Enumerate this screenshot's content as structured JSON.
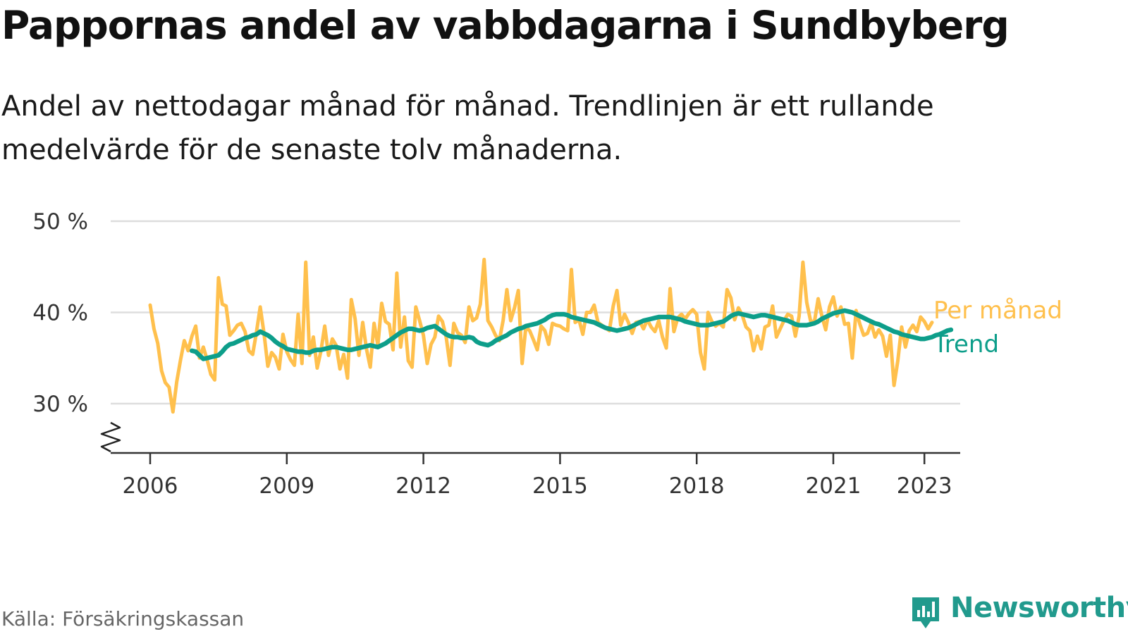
{
  "title": "Pappornas andel av vabbdagarna i Sundbyberg",
  "subtitle": "Andel av nettodagar månad för månad. Trendlinjen är ett rullande medelvärde för de senaste tolv månaderna.",
  "source": "Källa: Försäkringskassan",
  "brand": {
    "name": "Newsworthy",
    "icon": "newsworthy-logo-icon"
  },
  "colors": {
    "monthly": "#ffc04d",
    "trend": "#0d9e8a",
    "grid": "#dddddd",
    "axis": "#333333",
    "brand": "#219a8d"
  },
  "chart_data": {
    "type": "line",
    "title": "Pappornas andel av vabbdagarna i Sundbyberg",
    "subtitle": "Andel av nettodagar månad för månad. Trendlinjen är ett rullande medelvärde för de senaste tolv månaderna.",
    "xlabel": "",
    "ylabel": "",
    "ylim": [
      25,
      50
    ],
    "xlim": [
      2005.15,
      2024.1
    ],
    "y_break": true,
    "grid": true,
    "y_ticks": [
      {
        "value": 30,
        "label": "30 %"
      },
      {
        "value": 40,
        "label": "40 %"
      },
      {
        "value": 50,
        "label": "50 %"
      }
    ],
    "x_ticks": [
      {
        "value": 2006,
        "label": "2006"
      },
      {
        "value": 2009,
        "label": "2009"
      },
      {
        "value": 2012,
        "label": "2012"
      },
      {
        "value": 2015,
        "label": "2015"
      },
      {
        "value": 2018,
        "label": "2018"
      },
      {
        "value": 2021,
        "label": "2021"
      },
      {
        "value": 2023,
        "label": "2023"
      }
    ],
    "legend_placement": "right-end-labels",
    "series": [
      {
        "name": "Per månad",
        "color": "#ffc04d",
        "start": "2006-01",
        "values": [
          40.8,
          38.2,
          36.6,
          33.6,
          32.3,
          31.8,
          29.1,
          32.4,
          34.8,
          36.9,
          35.8,
          37.4,
          38.5,
          35.0,
          36.2,
          34.8,
          33.2,
          32.6,
          43.8,
          40.9,
          40.7,
          37.5,
          38.0,
          38.6,
          38.8,
          37.9,
          35.8,
          35.4,
          37.8,
          40.6,
          37.7,
          34.1,
          35.6,
          35.1,
          33.8,
          37.6,
          35.7,
          34.8,
          34.2,
          39.8,
          34.4,
          45.5,
          35.3,
          37.3,
          33.9,
          35.8,
          38.5,
          35.3,
          37.1,
          36.4,
          33.8,
          35.4,
          32.8,
          41.4,
          39.3,
          35.3,
          38.9,
          36.0,
          34.0,
          38.8,
          36.4,
          41.0,
          39.0,
          38.7,
          35.9,
          44.3,
          36.2,
          39.5,
          34.7,
          34.0,
          40.6,
          39.1,
          37.5,
          34.4,
          36.5,
          37.3,
          39.6,
          39.0,
          37.3,
          34.2,
          38.8,
          37.8,
          37.5,
          36.7,
          40.6,
          39.1,
          39.4,
          40.9,
          45.8,
          39.1,
          38.4,
          37.5,
          36.9,
          39.1,
          42.5,
          39.1,
          40.5,
          42.4,
          34.4,
          38.4,
          38.0,
          37.0,
          35.9,
          38.5,
          38.0,
          36.5,
          38.8,
          38.6,
          38.5,
          38.2,
          38.0,
          44.7,
          38.9,
          39.2,
          37.6,
          40.0,
          40.0,
          40.8,
          38.9,
          38.6,
          38.3,
          38.0,
          40.7,
          42.4,
          38.6,
          39.8,
          38.9,
          37.7,
          38.9,
          39.0,
          38.2,
          39.2,
          38.4,
          37.9,
          39.1,
          37.3,
          36.1,
          42.6,
          37.9,
          39.4,
          39.8,
          39.3,
          39.9,
          40.3,
          39.8,
          35.6,
          33.8,
          40.0,
          39.0,
          38.5,
          38.8,
          38.4,
          42.5,
          41.6,
          39.2,
          40.5,
          39.7,
          38.4,
          38.0,
          35.8,
          37.4,
          36.0,
          38.4,
          38.6,
          40.7,
          37.3,
          38.2,
          39.1,
          39.8,
          39.6,
          37.4,
          39.6,
          45.5,
          41.1,
          39.1,
          38.9,
          41.5,
          39.6,
          38.1,
          40.6,
          41.7,
          39.6,
          40.6,
          38.7,
          38.8,
          35.0,
          40.2,
          38.7,
          37.5,
          37.7,
          38.8,
          37.3,
          38.1,
          37.4,
          35.2,
          37.5,
          32.0,
          34.7,
          38.4,
          36.2,
          38.0,
          38.6,
          37.9,
          39.5,
          39.0,
          38.2,
          38.9
        ]
      },
      {
        "name": "Trend",
        "color": "#0d9e8a",
        "start": "2006-12",
        "values": [
          35.8,
          35.7,
          35.3,
          34.9,
          35.0,
          35.1,
          35.2,
          35.3,
          35.7,
          36.2,
          36.5,
          36.6,
          36.8,
          37.0,
          37.2,
          37.3,
          37.5,
          37.6,
          37.9,
          37.7,
          37.5,
          37.2,
          36.8,
          36.5,
          36.3,
          36.0,
          35.9,
          35.8,
          35.7,
          35.7,
          35.6,
          35.6,
          35.8,
          35.9,
          35.9,
          36.0,
          36.1,
          36.2,
          36.2,
          36.1,
          36.0,
          35.9,
          35.9,
          36.0,
          36.1,
          36.2,
          36.3,
          36.4,
          36.3,
          36.2,
          36.4,
          36.6,
          36.9,
          37.2,
          37.5,
          37.8,
          38.0,
          38.2,
          38.2,
          38.1,
          38.0,
          38.1,
          38.3,
          38.4,
          38.5,
          38.2,
          37.9,
          37.6,
          37.4,
          37.3,
          37.3,
          37.2,
          37.2,
          37.3,
          37.2,
          36.8,
          36.6,
          36.5,
          36.4,
          36.6,
          36.9,
          37.1,
          37.3,
          37.5,
          37.8,
          38.0,
          38.2,
          38.3,
          38.5,
          38.6,
          38.7,
          38.8,
          39.0,
          39.2,
          39.5,
          39.7,
          39.8,
          39.8,
          39.8,
          39.7,
          39.5,
          39.4,
          39.3,
          39.2,
          39.1,
          39.0,
          38.9,
          38.7,
          38.5,
          38.3,
          38.2,
          38.1,
          38.0,
          38.1,
          38.2,
          38.3,
          38.5,
          38.7,
          38.9,
          39.1,
          39.2,
          39.3,
          39.4,
          39.5,
          39.5,
          39.5,
          39.5,
          39.4,
          39.3,
          39.2,
          39.0,
          38.9,
          38.8,
          38.7,
          38.6,
          38.6,
          38.6,
          38.7,
          38.8,
          38.9,
          39.0,
          39.3,
          39.6,
          39.8,
          39.9,
          39.8,
          39.7,
          39.6,
          39.5,
          39.6,
          39.7,
          39.7,
          39.6,
          39.5,
          39.4,
          39.3,
          39.2,
          39.1,
          38.9,
          38.7,
          38.6,
          38.6,
          38.6,
          38.7,
          38.8,
          39.0,
          39.3,
          39.5,
          39.7,
          39.9,
          40.0,
          40.1,
          40.2,
          40.1,
          40.0,
          39.8,
          39.6,
          39.4,
          39.2,
          39.0,
          38.8,
          38.7,
          38.5,
          38.3,
          38.1,
          37.9,
          37.8,
          37.6,
          37.5,
          37.4,
          37.3,
          37.2,
          37.1,
          37.1,
          37.2,
          37.3,
          37.5,
          37.6,
          37.8,
          38.0,
          38.1
        ]
      }
    ]
  }
}
